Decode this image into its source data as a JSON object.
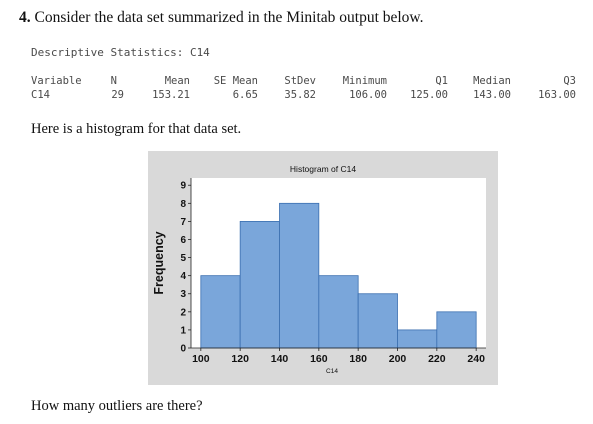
{
  "question": {
    "number": "4.",
    "text": "Consider the data set summarized in the Minitab output below."
  },
  "stats": {
    "heading": "Descriptive Statistics: C14",
    "headers": [
      "Variable",
      "N",
      "Mean",
      "SE Mean",
      "StDev",
      "Minimum",
      "Q1",
      "Median",
      "Q3"
    ],
    "row": [
      "C14",
      "29",
      "153.21",
      "6.65",
      "35.82",
      "106.00",
      "125.00",
      "143.00",
      "163.00"
    ]
  },
  "intro_text": "Here is a histogram for that data set.",
  "closing_text": "How many outliers are there?",
  "chart_data": {
    "type": "bar",
    "title": "Histogram of C14",
    "xlabel": "C14",
    "ylabel": "Frequency",
    "bins": [
      {
        "start": 100,
        "end": 120,
        "count": 4
      },
      {
        "start": 120,
        "end": 140,
        "count": 7
      },
      {
        "start": 140,
        "end": 160,
        "count": 8
      },
      {
        "start": 160,
        "end": 180,
        "count": 4
      },
      {
        "start": 180,
        "end": 200,
        "count": 3
      },
      {
        "start": 200,
        "end": 220,
        "count": 1
      },
      {
        "start": 220,
        "end": 240,
        "count": 2
      }
    ],
    "xticks": [
      100,
      120,
      140,
      160,
      180,
      200,
      220,
      240
    ],
    "yticks": [
      0,
      1,
      2,
      3,
      4,
      5,
      6,
      7,
      8,
      9
    ],
    "xlim": [
      95,
      245
    ],
    "ylim": [
      0,
      9.4
    ],
    "bar_color": "#7aa6da",
    "bar_edge_color": "#3b6fb0",
    "plot_background": "#ffffff",
    "frame_background": "#d9d9d9",
    "grid": false
  }
}
